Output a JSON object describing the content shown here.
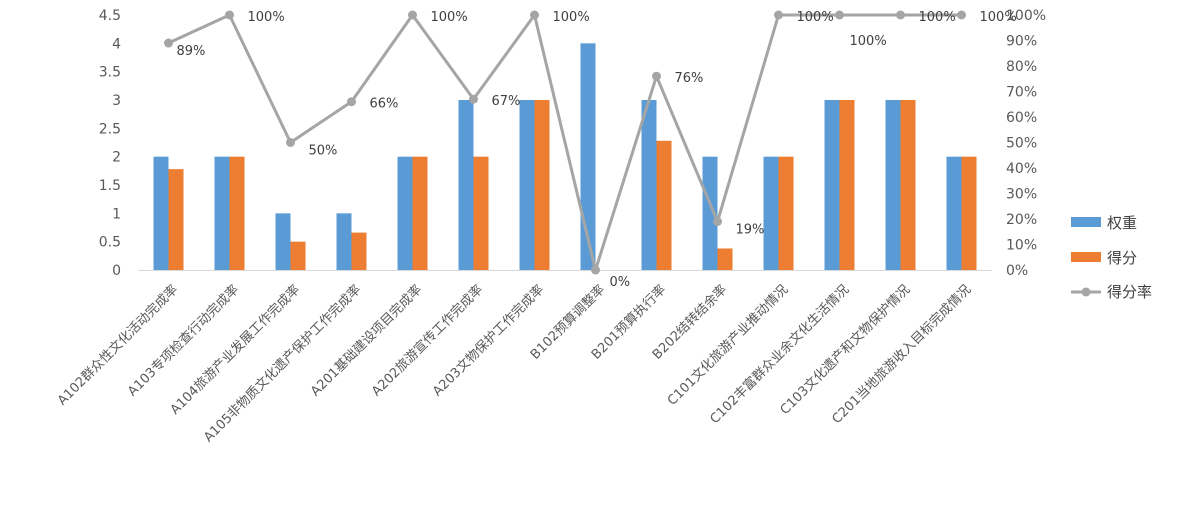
{
  "chart_data": {
    "type": "bar",
    "categories": [
      "A102群众性文化活动完成率",
      "A103专项检查行动完成率",
      "A104旅游产业发展工作完成率",
      "A105非物质文化遗产保护工作完成率",
      "A201基础建设项目完成率",
      "A202旅游宣传工作完成率",
      "A203文物保护工作完成率",
      "B102预算调整率",
      "B201预算执行率",
      "B202结转结余率",
      "C101文化旅游产业推动情况",
      "C102丰富群众业余文化生活情况",
      "C103文化遗产和文物保护情况",
      "C201当地旅游收入目标完成情况"
    ],
    "series": [
      {
        "name": "权重",
        "kind": "bar",
        "axis": "left",
        "color": "#5B9BD5",
        "values": [
          2,
          2,
          1,
          1,
          2,
          3,
          3,
          4,
          3,
          2,
          2,
          3,
          3,
          2
        ]
      },
      {
        "name": "得分",
        "kind": "bar",
        "axis": "left",
        "color": "#ED7D31",
        "values": [
          1.78,
          2,
          0.5,
          0.66,
          2,
          2,
          3,
          0,
          2.28,
          0.38,
          2,
          3,
          3,
          2
        ]
      },
      {
        "name": "得分率",
        "kind": "line",
        "axis": "right",
        "color": "#A5A5A5",
        "values": [
          0.89,
          1,
          0.5,
          0.66,
          1,
          0.67,
          1,
          0,
          0.76,
          0.19,
          1,
          1,
          1,
          1
        ]
      }
    ],
    "data_labels": [
      "89%",
      "100%",
      "50%",
      "66%",
      "100%",
      "67%",
      "100%",
      "0%",
      "76%",
      "19%",
      "100%",
      "100%",
      "100%",
      "100%"
    ],
    "y_left": {
      "min": 0,
      "max": 4.5,
      "step": 0.5,
      "ticks": [
        "0",
        "0.5",
        "1",
        "1.5",
        "2",
        "2.5",
        "3",
        "3.5",
        "4",
        "4.5"
      ]
    },
    "y_right": {
      "min": 0,
      "max": 1,
      "step": 0.1,
      "ticks": [
        "0%",
        "10%",
        "20%",
        "30%",
        "40%",
        "50%",
        "60%",
        "70%",
        "80%",
        "90%",
        "100%"
      ]
    },
    "grid": false,
    "legend_position": "right"
  }
}
